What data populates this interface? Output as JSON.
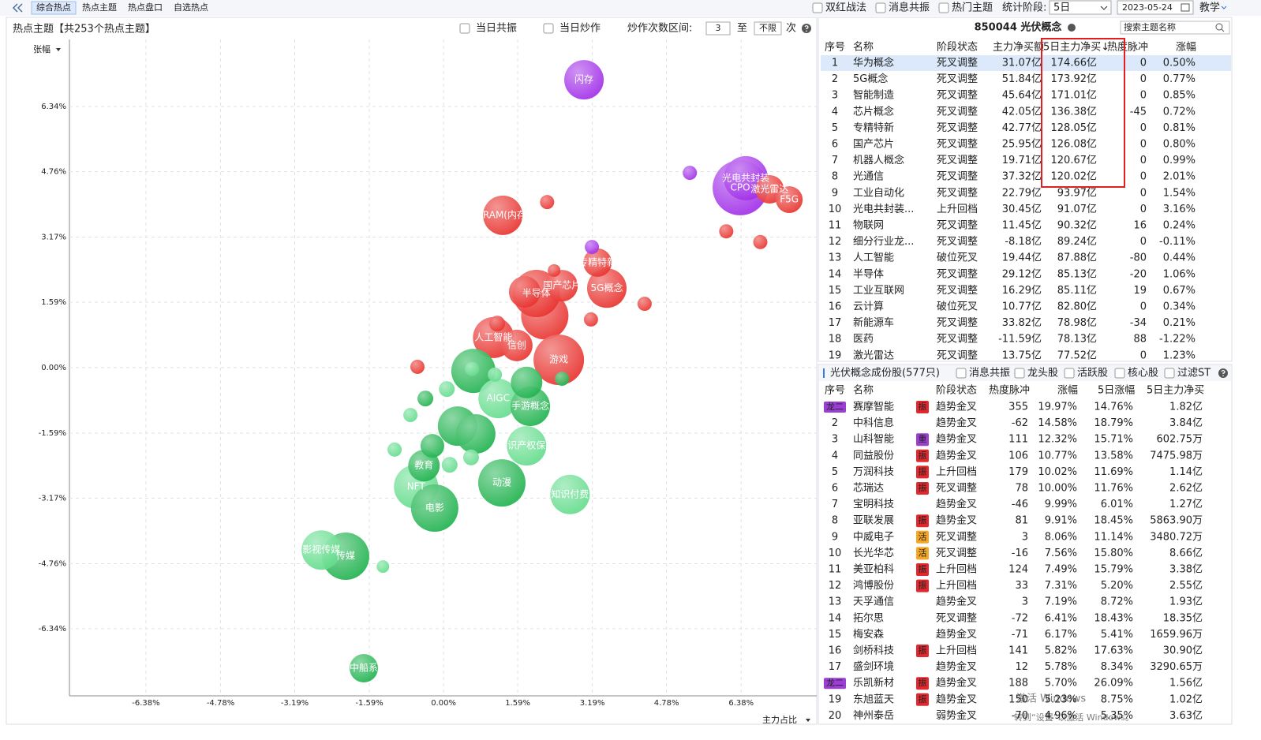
{
  "toolbar": {
    "tabs": [
      "综合热点",
      "热点主题",
      "热点盘口",
      "自选热点"
    ],
    "active_tab": 0,
    "options": [
      "双红战法",
      "消息共振",
      "热门主题"
    ],
    "period_label": "统计阶段:",
    "period": "5日",
    "date": "2023-05-24",
    "help": "教学"
  },
  "left_header": {
    "title": "热点主题【共253个热点主题】",
    "options": [
      "当日共振",
      "当日炒作"
    ],
    "range_label": "炒作次数区间:",
    "range_from": "3",
    "range_sep": "至",
    "range_to": "不限",
    "range_unit": "次"
  },
  "chart_data": {
    "type": "bubble",
    "y_label": "张幅",
    "x_label": "主力占比",
    "xlim": [
      -8.02,
      8.0
    ],
    "ylim": [
      -7.97,
      7.97
    ],
    "grid": true,
    "positive_color": "#e8322e",
    "negative_color": "#1a9a3c",
    "xticks": [
      {
        "value": -6.38,
        "label": "-6.38%"
      },
      {
        "value": -4.78,
        "label": "-4.78%"
      },
      {
        "value": -3.19,
        "label": "-3.19%"
      },
      {
        "value": -1.59,
        "label": "-1.59%"
      },
      {
        "value": 0,
        "label": "0.00%"
      },
      {
        "value": 1.59,
        "label": "1.59%"
      },
      {
        "value": 3.19,
        "label": "3.19%"
      },
      {
        "value": 4.78,
        "label": "4.78%"
      },
      {
        "value": 6.38,
        "label": "6.38%"
      }
    ],
    "yticks": [
      {
        "value": 6.34,
        "label": "6.34%"
      },
      {
        "value": 4.76,
        "label": "4.76%"
      },
      {
        "value": 3.17,
        "label": "3.17%"
      },
      {
        "value": 1.59,
        "label": "1.59%"
      },
      {
        "value": 0,
        "label": "0.00%"
      },
      {
        "value": -1.59,
        "label": "-1.59%"
      },
      {
        "value": -3.17,
        "label": "-3.17%"
      },
      {
        "value": -4.76,
        "label": "-4.76%"
      },
      {
        "value": -6.34,
        "label": "-6.34%"
      }
    ],
    "points": [
      {
        "label": "CPO",
        "x": 6.36,
        "y": 4.37,
        "size": 35,
        "color": "#a12ee8"
      },
      {
        "label": "光电共封装",
        "x": 6.48,
        "y": 4.6,
        "size": 28,
        "color": "#a12ee8"
      },
      {
        "label": "闪存",
        "x": 3.01,
        "y": 6.99,
        "size": 25,
        "color": "#a12ee8"
      },
      {
        "label": "激光雷达",
        "x": 6.99,
        "y": 4.33,
        "size": 18,
        "color": "#e8322e"
      },
      {
        "label": "F5G",
        "x": 7.41,
        "y": 4.08,
        "size": 17,
        "color": "#e8322e"
      },
      {
        "label": "DRAM(内存)",
        "x": 1.27,
        "y": 3.7,
        "size": 25,
        "color": "#e8322e"
      },
      {
        "x": 2.17,
        "y": 1.26,
        "size": 30,
        "color": "#e8322e"
      },
      {
        "label": "半导体",
        "x": 1.99,
        "y": 1.8,
        "size": 30,
        "color": "#e8322e"
      },
      {
        "label": "游戏",
        "x": 2.47,
        "y": 0.19,
        "size": 32,
        "color": "#e8322e"
      },
      {
        "label": "5G概念",
        "x": 3.5,
        "y": 1.93,
        "size": 25,
        "color": "#e8322e"
      },
      {
        "label": "人工智能",
        "x": 1.07,
        "y": 0.73,
        "size": 26,
        "color": "#e8322e"
      },
      {
        "x": 1.74,
        "y": 1.84,
        "size": 20,
        "color": "#e8322e"
      },
      {
        "label": "国产芯片",
        "x": 2.54,
        "y": 1.99,
        "size": 20,
        "color": "#e8322e"
      },
      {
        "label": "信创",
        "x": 1.57,
        "y": 0.54,
        "size": 20,
        "color": "#e8322e"
      },
      {
        "label": "专精特新",
        "x": 3.3,
        "y": 2.55,
        "size": 18,
        "color": "#e8322e"
      },
      {
        "x": 0.64,
        "y": -0.08,
        "size": 28,
        "color": "#1fb24e"
      },
      {
        "x": 0.3,
        "y": -1.42,
        "size": 25,
        "color": "#1fb24e"
      },
      {
        "x": 0.69,
        "y": -1.61,
        "size": 25,
        "color": "#1fb24e"
      },
      {
        "label": "AIGC",
        "x": 1.17,
        "y": -0.75,
        "size": 25,
        "color": "#63dc8c"
      },
      {
        "label": "手游概念",
        "x": 1.86,
        "y": -0.94,
        "size": 25,
        "color": "#1fb24e"
      },
      {
        "x": 1.78,
        "y": -0.36,
        "size": 20,
        "color": "#1fb24e"
      },
      {
        "label": "知识产权保护",
        "x": 1.78,
        "y": -1.9,
        "size": 25,
        "color": "#63dc8c"
      },
      {
        "label": "NFT",
        "x": -0.59,
        "y": -2.89,
        "size": 28,
        "color": "#63dc8c"
      },
      {
        "label": "电影",
        "x": -0.19,
        "y": -3.41,
        "size": 30,
        "color": "#1fb24e"
      },
      {
        "label": "教育",
        "x": -0.42,
        "y": -2.38,
        "size": 20,
        "color": "#1fb24e"
      },
      {
        "label": "动漫",
        "x": 1.25,
        "y": -2.8,
        "size": 30,
        "color": "#1fb24e"
      },
      {
        "label": "知识付费",
        "x": 2.71,
        "y": -3.08,
        "size": 25,
        "color": "#63dc8c"
      },
      {
        "label": "传媒",
        "x": -2.1,
        "y": -4.58,
        "size": 30,
        "color": "#1fb24e"
      },
      {
        "label": "影视传媒",
        "x": -2.62,
        "y": -4.43,
        "size": 25,
        "color": "#63dc8c"
      },
      {
        "label": "中船系",
        "x": -1.71,
        "y": -7.3,
        "size": 18,
        "color": "#1fb24e"
      },
      {
        "x": -0.24,
        "y": -1.9,
        "size": 15,
        "color": "#1fb24e"
      },
      {
        "x": 5.28,
        "y": 4.73,
        "size": 9,
        "color": "#a12ee8"
      },
      {
        "x": 2.22,
        "y": 4.02,
        "size": 9,
        "color": "#e8322e"
      },
      {
        "x": 6.06,
        "y": 3.31,
        "size": 9,
        "color": "#e8322e"
      },
      {
        "x": 6.79,
        "y": 3.05,
        "size": 9,
        "color": "#e8322e"
      },
      {
        "x": 3.18,
        "y": 2.93,
        "size": 9,
        "color": "#a12ee8"
      },
      {
        "x": 4.31,
        "y": 1.55,
        "size": 9,
        "color": "#e8322e"
      },
      {
        "x": 3.16,
        "y": 1.17,
        "size": 9,
        "color": "#e8322e"
      },
      {
        "x": 2.37,
        "y": 2.36,
        "size": 8,
        "color": "#e8322e"
      },
      {
        "x": 1.15,
        "y": 1.07,
        "size": 10,
        "color": "#e8322e"
      },
      {
        "x": -0.56,
        "y": 0.02,
        "size": 9,
        "color": "#e8322e"
      },
      {
        "x": 2.54,
        "y": -0.27,
        "size": 9,
        "color": "#1fb24e"
      },
      {
        "x": -0.71,
        "y": -1.15,
        "size": 9,
        "color": "#63dc8c"
      },
      {
        "x": -1.05,
        "y": -1.99,
        "size": 9,
        "color": "#63dc8c"
      },
      {
        "x": -1.3,
        "y": -4.83,
        "size": 8,
        "color": "#63dc8c"
      },
      {
        "x": 0.59,
        "y": -2.18,
        "size": 10,
        "color": "#63dc8c"
      },
      {
        "x": 0.07,
        "y": -0.52,
        "size": 10,
        "color": "#63dc8c"
      },
      {
        "x": -0.39,
        "y": -0.75,
        "size": 10,
        "color": "#1fb24e"
      },
      {
        "x": 0.13,
        "y": -2.36,
        "size": 10,
        "color": "#63dc8c"
      },
      {
        "x": 0.61,
        "y": -0.03,
        "size": 9,
        "color": "#63dc8c"
      },
      {
        "x": 1.1,
        "y": -0.17,
        "size": 9,
        "color": "#63dc8c"
      }
    ]
  },
  "theme_panel": {
    "title": "850044 光伏概念",
    "search": "搜索主题名称",
    "columns": [
      "序号",
      "名称",
      "阶段状态",
      "主力净买额",
      "5日主力净买↓",
      "热度脉冲",
      "涨幅"
    ],
    "rows": [
      [
        "1",
        "华为概念",
        "死叉调整",
        "31.07亿",
        "174.66亿",
        "0",
        "0.50%"
      ],
      [
        "2",
        "5G概念",
        "死叉调整",
        "51.84亿",
        "173.92亿",
        "0",
        "0.77%"
      ],
      [
        "3",
        "智能制造",
        "死叉调整",
        "45.64亿",
        "171.01亿",
        "0",
        "0.85%"
      ],
      [
        "4",
        "芯片概念",
        "死叉调整",
        "42.05亿",
        "136.38亿",
        "-45",
        "0.72%"
      ],
      [
        "5",
        "专精特新",
        "死叉调整",
        "42.77亿",
        "128.05亿",
        "0",
        "0.81%"
      ],
      [
        "6",
        "国产芯片",
        "死叉调整",
        "25.95亿",
        "126.08亿",
        "0",
        "0.80%"
      ],
      [
        "7",
        "机器人概念",
        "死叉调整",
        "19.71亿",
        "120.67亿",
        "0",
        "0.99%"
      ],
      [
        "8",
        "光通信",
        "死叉调整",
        "37.32亿",
        "120.02亿",
        "0",
        "2.01%"
      ],
      [
        "9",
        "工业自动化",
        "死叉调整",
        "22.79亿",
        "93.97亿",
        "0",
        "1.54%"
      ],
      [
        "10",
        "光电共封装...",
        "上升回档",
        "30.45亿",
        "91.07亿",
        "0",
        "3.16%"
      ],
      [
        "11",
        "物联网",
        "死叉调整",
        "11.45亿",
        "90.32亿",
        "16",
        "0.24%"
      ],
      [
        "12",
        "细分行业龙...",
        "死叉调整",
        "-8.18亿",
        "89.24亿",
        "0",
        "-0.11%"
      ],
      [
        "13",
        "人工智能",
        "破位死叉",
        "19.44亿",
        "87.88亿",
        "-80",
        "0.44%"
      ],
      [
        "14",
        "半导体",
        "死叉调整",
        "29.12亿",
        "85.13亿",
        "-20",
        "1.06%"
      ],
      [
        "15",
        "工业互联网",
        "死叉调整",
        "16.29亿",
        "85.11亿",
        "19",
        "0.67%"
      ],
      [
        "16",
        "云计算",
        "破位死叉",
        "10.77亿",
        "82.80亿",
        "0",
        "0.34%"
      ],
      [
        "17",
        "新能源车",
        "死叉调整",
        "33.82亿",
        "78.98亿",
        "-34",
        "0.21%"
      ],
      [
        "18",
        "医药",
        "死叉调整",
        "-11.59亿",
        "78.13亿",
        "88",
        "-1.22%"
      ],
      [
        "19",
        "激光雷达",
        "死叉调整",
        "13.75亿",
        "77.52亿",
        "0",
        "1.23%"
      ]
    ]
  },
  "stock_panel": {
    "title": "光伏概念成份股(577只)",
    "options": [
      "消息共振",
      "龙头股",
      "活跃股",
      "核心股",
      "过滤ST"
    ],
    "columns": [
      "序号",
      "名称",
      "阶段状态",
      "热度脉冲",
      "涨幅",
      "5日涨幅",
      "5日主力净买"
    ],
    "badge_color": "#9b3fd4",
    "link_color": "#1e6fd9",
    "tag_colors": {
      "振": "#e0282e",
      "重": "#9a3fd0",
      "活": "#f5a623"
    },
    "rows": [
      {
        "no": "龙二",
        "name": "赛摩智能",
        "tag": "振",
        "state": "趋势金叉",
        "pulse": "355",
        "change": "19.97%",
        "change5": "14.76%",
        "net5": "1.82亿"
      },
      {
        "no": "2",
        "name": "中科信息",
        "state": "趋势金叉",
        "pulse": "-62",
        "change": "14.58%",
        "change5": "18.79%",
        "net5": "3.84亿"
      },
      {
        "no": "3",
        "name": "山科智能",
        "tag": "重",
        "state": "趋势金叉",
        "pulse": "111",
        "change": "12.32%",
        "change5": "15.71%",
        "net5": "602.75万"
      },
      {
        "no": "4",
        "name": "同益股份",
        "tag": "振",
        "state": "趋势金叉",
        "pulse": "106",
        "change": "10.77%",
        "change5": "13.58%",
        "net5": "7475.98万"
      },
      {
        "no": "5",
        "name": "万润科技",
        "tag": "振",
        "state": "上升回档",
        "pulse": "179",
        "change": "10.02%",
        "change5": "11.69%",
        "net5": "1.14亿"
      },
      {
        "no": "6",
        "name": "芯瑞达",
        "tag": "振",
        "state": "死叉调整",
        "pulse": "78",
        "change": "10.00%",
        "change5": "11.76%",
        "net5": "2.62亿"
      },
      {
        "no": "7",
        "name": "宝明科技",
        "state": "趋势金叉",
        "pulse": "-46",
        "change": "9.99%",
        "change5": "6.01%",
        "net5": "1.27亿"
      },
      {
        "no": "8",
        "name": "亚联发展",
        "tag": "振",
        "state": "趋势金叉",
        "pulse": "81",
        "change": "9.91%",
        "change5": "18.45%",
        "net5": "5863.90万"
      },
      {
        "no": "9",
        "name": "中威电子",
        "tag": "活",
        "state": "死叉调整",
        "pulse": "3",
        "change": "8.06%",
        "change5": "11.14%",
        "net5": "3480.72万"
      },
      {
        "no": "10",
        "name": "长光华芯",
        "link": true,
        "tag": "活",
        "state": "死叉调整",
        "pulse": "-16",
        "change": "7.56%",
        "change5": "15.80%",
        "net5": "8.66亿"
      },
      {
        "no": "11",
        "name": "美亚柏科",
        "tag": "振",
        "state": "上升回档",
        "pulse": "124",
        "change": "7.49%",
        "change5": "15.79%",
        "net5": "3.38亿"
      },
      {
        "no": "12",
        "name": "鸿博股份",
        "tag": "振",
        "state": "上升回档",
        "pulse": "33",
        "change": "7.31%",
        "change5": "5.20%",
        "net5": "2.55亿"
      },
      {
        "no": "13",
        "name": "天孚通信",
        "state": "趋势金叉",
        "pulse": "3",
        "change": "7.19%",
        "change5": "8.72%",
        "net5": "1.93亿"
      },
      {
        "no": "14",
        "name": "拓尔思",
        "state": "死叉调整",
        "pulse": "-72",
        "change": "6.41%",
        "change5": "18.43%",
        "net5": "18.35亿"
      },
      {
        "no": "15",
        "name": "梅安森",
        "state": "趋势金叉",
        "pulse": "-71",
        "change": "6.17%",
        "change5": "5.41%",
        "net5": "1659.96万"
      },
      {
        "no": "16",
        "name": "剑桥科技",
        "tag": "振",
        "state": "上升回档",
        "pulse": "141",
        "change": "5.82%",
        "change5": "17.63%",
        "net5": "30.90亿"
      },
      {
        "no": "17",
        "name": "盛剑环境",
        "state": "趋势金叉",
        "pulse": "12",
        "change": "5.78%",
        "change5": "8.34%",
        "net5": "3290.65万"
      },
      {
        "no": "龙二",
        "name": "乐凯新材",
        "tag": "振",
        "state": "趋势金叉",
        "pulse": "188",
        "change": "5.70%",
        "change5": "26.09%",
        "net5": "1.56亿"
      },
      {
        "no": "19",
        "name": "东旭蓝天",
        "tag": "振",
        "state": "趋势金叉",
        "pulse": "150",
        "change": "5.23%",
        "change5": "8.75%",
        "net5": "1.02亿"
      },
      {
        "no": "20",
        "name": "神州泰岳",
        "link": true,
        "state": "弱势金叉",
        "pulse": "-70",
        "change": "4.96%",
        "change5": "5.35%",
        "net5": "3.63亿"
      }
    ]
  },
  "watermark": [
    "激活 Windows",
    "转到“设置”以激活 Windows。"
  ]
}
